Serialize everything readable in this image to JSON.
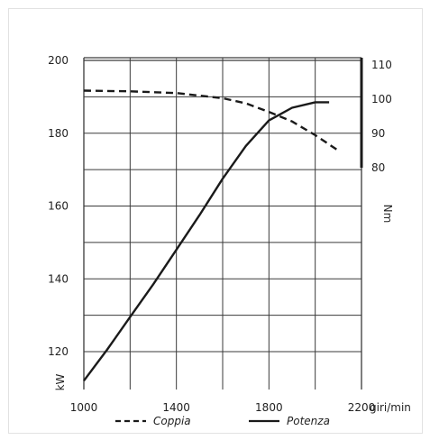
{
  "chart_data": {
    "type": "line",
    "x": {
      "ticks": [
        1000,
        1400,
        1800,
        2200
      ],
      "tick_labels": [
        "1000",
        "1400",
        "1800",
        "2200"
      ],
      "unit": "giri/min",
      "range": [
        1000,
        2200
      ]
    },
    "y_left": {
      "ticks": [
        120,
        140,
        160,
        180,
        200
      ],
      "unit": "kW",
      "range": [
        112,
        200
      ]
    },
    "y_right": {
      "ticks": [
        80,
        90,
        100,
        110
      ],
      "unit": "Nm",
      "range": [
        80,
        110
      ]
    },
    "grid": true,
    "series": [
      {
        "name": "Coppia",
        "axis": "right",
        "style": "dashed",
        "points": [
          [
            1000,
            102.5
          ],
          [
            1200,
            102.3
          ],
          [
            1400,
            101.8
          ],
          [
            1600,
            100.3
          ],
          [
            1700,
            98.8
          ],
          [
            1800,
            96.3
          ],
          [
            1900,
            93.5
          ],
          [
            2000,
            89.5
          ],
          [
            2100,
            85.0
          ]
        ]
      },
      {
        "name": "Potenza",
        "axis": "left",
        "style": "solid",
        "points": [
          [
            1000,
            112
          ],
          [
            1100,
            120.5
          ],
          [
            1200,
            129.5
          ],
          [
            1300,
            138.5
          ],
          [
            1400,
            148
          ],
          [
            1500,
            157.5
          ],
          [
            1600,
            167.5
          ],
          [
            1700,
            176.5
          ],
          [
            1800,
            183.5
          ],
          [
            1900,
            187
          ],
          [
            2000,
            188.5
          ],
          [
            2060,
            188.5
          ]
        ]
      }
    ],
    "legend": {
      "placement": "bottom"
    }
  }
}
